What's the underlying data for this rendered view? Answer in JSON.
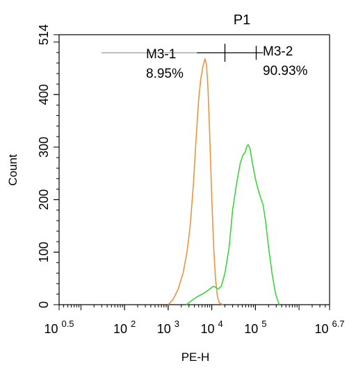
{
  "chart_data": {
    "type": "line",
    "title": "P1",
    "title_color": "#2fd12f",
    "xlabel": "PE-H",
    "ylabel": "Count",
    "xscale": "log",
    "xlim": [
      3.1623,
      5011872
    ],
    "ylim": [
      0,
      514
    ],
    "x_ticks": [
      {
        "value": 3.1623,
        "base": "10",
        "exp": "0.5"
      },
      {
        "value": 100,
        "base": "10",
        "exp": "2"
      },
      {
        "value": 1000,
        "base": "10",
        "exp": "3"
      },
      {
        "value": 10000,
        "base": "10",
        "exp": "4"
      },
      {
        "value": 100000,
        "base": "10",
        "exp": "5"
      },
      {
        "value": 5011872,
        "base": "10",
        "exp": "6.7"
      }
    ],
    "y_ticks": [
      0,
      100,
      200,
      300,
      400,
      514
    ],
    "grid": false,
    "series": [
      {
        "color": "#f0923c",
        "x": [
          1000,
          1300,
          1700,
          2200,
          2700,
          3200,
          3800,
          4400,
          5000,
          5600,
          6300,
          7000,
          7600,
          8200,
          9000,
          10000,
          11200,
          12300,
          13500,
          15000,
          18000
        ],
        "y": [
          0,
          10,
          30,
          60,
          100,
          150,
          230,
          320,
          390,
          430,
          455,
          468,
          455,
          410,
          320,
          200,
          100,
          45,
          15,
          3,
          0
        ]
      },
      {
        "color": "#3ad63a",
        "x": [
          2600,
          3500,
          4600,
          6000,
          7500,
          9000,
          10800,
          12300,
          14000,
          16500,
          20000,
          25000,
          30000,
          37000,
          45000,
          52000,
          58000,
          63000,
          68000,
          75000,
          85000,
          100000,
          115000,
          130000,
          150000,
          170000,
          200000,
          240000,
          290000,
          350000
        ],
        "y": [
          0,
          8,
          15,
          20,
          25,
          30,
          35,
          33,
          30,
          35,
          60,
          110,
          180,
          230,
          270,
          285,
          290,
          300,
          305,
          298,
          270,
          240,
          220,
          205,
          190,
          160,
          110,
          60,
          20,
          0
        ]
      }
    ],
    "markers": [
      {
        "name": "M3-1",
        "percent": "8.95%",
        "range": [
          30,
          20000
        ]
      },
      {
        "name": "M3-2",
        "percent": "90.93%",
        "range": [
          20000,
          5011872
        ]
      }
    ]
  }
}
